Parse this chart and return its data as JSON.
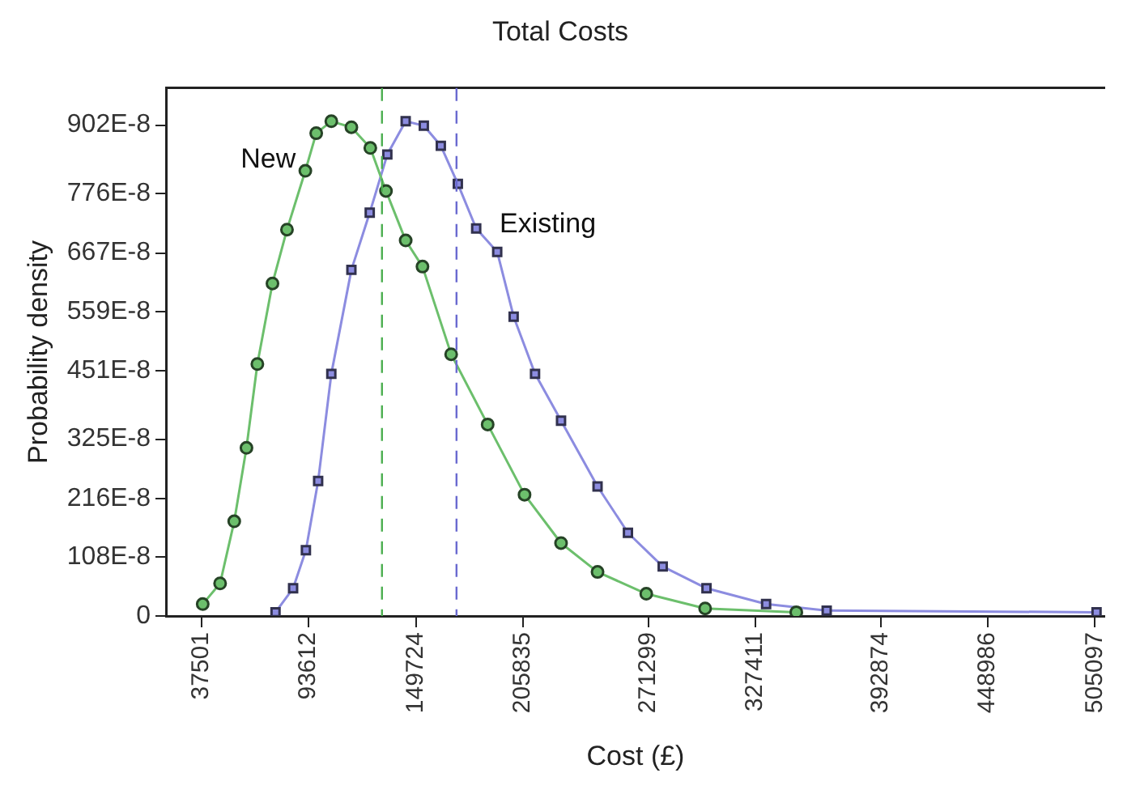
{
  "chart_data": {
    "type": "line",
    "title": "Total Costs",
    "xlabel": "Cost (£)",
    "ylabel": "Probability density",
    "xlim": [
      19400,
      510000
    ],
    "xticks": [
      37501,
      93612,
      149724,
      205835,
      271299,
      327411,
      392874,
      448986,
      505097
    ],
    "ylim": [
      0,
      9.7e-06
    ],
    "yticks": [
      0,
      {
        "value": 1.08e-06,
        "label": "108E-8"
      },
      {
        "value": 2.16e-06,
        "label": "216E-8"
      },
      {
        "value": 3.25e-06,
        "label": "325E-8"
      },
      {
        "value": 4.51e-06,
        "label": "451E-8"
      },
      {
        "value": 5.59e-06,
        "label": "559E-8"
      },
      {
        "value": 6.67e-06,
        "label": "667E-8"
      },
      {
        "value": 7.76e-06,
        "label": "776E-8"
      },
      {
        "value": 9.02e-06,
        "label": "902E-8"
      }
    ],
    "grid": false,
    "legend": false,
    "line_style": "solid",
    "ref_lines": [
      {
        "axis": "x",
        "value": 132000,
        "color": "#4caf50",
        "line_style": "dashed"
      },
      {
        "axis": "x",
        "value": 171000,
        "color": "#6a6ad0",
        "line_style": "dashed"
      }
    ],
    "series": [
      {
        "name": "New",
        "color": "#6cbf6c",
        "marker": "circle",
        "x": [
          38200,
          47300,
          54700,
          61100,
          66800,
          74700,
          82300,
          91900,
          97600,
          105500,
          116000,
          125900,
          134100,
          144400,
          153200,
          168200,
          187300,
          206600,
          225700,
          244800,
          270300,
          301100,
          348800
        ],
        "values": [
          2.2e-07,
          6e-07,
          1.74e-06,
          3.09e-06,
          4.63e-06,
          6.11e-06,
          7.1e-06,
          8.18e-06,
          8.87e-06,
          9.09e-06,
          8.98e-06,
          8.6e-06,
          7.81e-06,
          6.9e-06,
          6.42e-06,
          4.81e-06,
          3.52e-06,
          2.23e-06,
          1.34e-06,
          8.1e-07,
          4.1e-07,
          1.4e-07,
          7e-08
        ]
      },
      {
        "name": "Existing",
        "color": "#8c8ce0",
        "marker": "square",
        "x": [
          76300,
          85500,
          92200,
          98600,
          105500,
          116000,
          125600,
          134800,
          144400,
          153900,
          162800,
          171700,
          181300,
          192300,
          200900,
          212100,
          225700,
          244800,
          260700,
          278900,
          301800,
          333000,
          364700,
          505900
        ],
        "values": [
          7e-08,
          5.1e-07,
          1.21e-06,
          2.48e-06,
          4.45e-06,
          6.36e-06,
          7.41e-06,
          8.48e-06,
          9.09e-06,
          9.01e-06,
          8.64e-06,
          7.94e-06,
          7.12e-06,
          6.69e-06,
          5.5e-06,
          4.45e-06,
          3.59e-06,
          2.38e-06,
          1.53e-06,
          9.1e-07,
          5.1e-07,
          2.2e-07,
          1e-07,
          7e-08
        ]
      }
    ]
  }
}
